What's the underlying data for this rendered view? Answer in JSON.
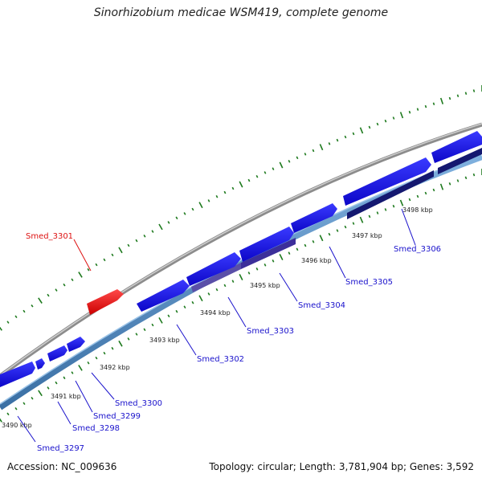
{
  "header": {
    "title": "Sinorhizobium medicae WSM419, complete genome"
  },
  "footer": {
    "accession": "Accession: NC_009636",
    "stats": "Topology: circular; Length: 3,781,904 bp; Genes: 3,592"
  },
  "colors": {
    "forward_gene": "#1a10ee",
    "reverse_gene": "#4a80b6",
    "highlight_gene": "#ee1111",
    "backbone": "#8c8c8c",
    "tick": "#1e7a1e",
    "label_blue": "#1a12cc",
    "label_red": "#dd1111"
  },
  "map": {
    "kbp_labels": [
      "3490 kbp",
      "3491 kbp",
      "3492 kbp",
      "3493 kbp",
      "3494 kbp",
      "3495 kbp",
      "3496 kbp",
      "3497 kbp",
      "3498 kbp"
    ],
    "gene_labels": [
      "Smed_3297",
      "Smed_3298",
      "Smed_3299",
      "Smed_3300",
      "Smed_3301",
      "Smed_3302",
      "Smed_3303",
      "Smed_3304",
      "Smed_3305",
      "Smed_3306"
    ]
  }
}
